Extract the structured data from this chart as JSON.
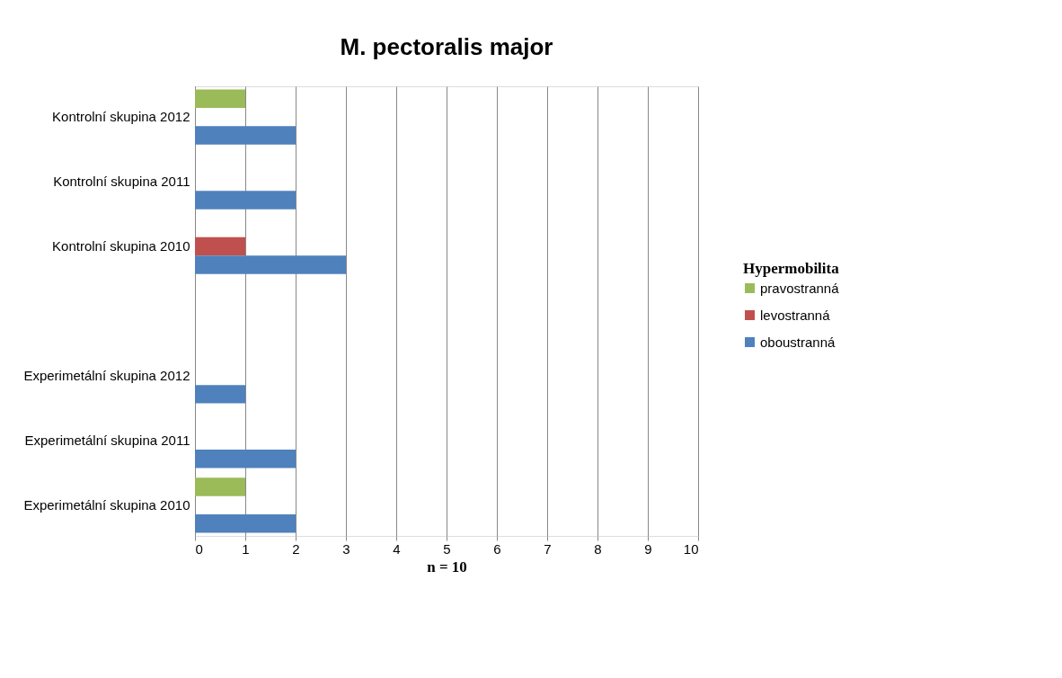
{
  "chart_data": {
    "type": "bar",
    "orientation": "horizontal",
    "title": "M. pectoralis major",
    "xlabel": "n = 10",
    "legend_title": "Hypermobilita",
    "categories": [
      "Kontrolní skupina 2012",
      "Kontrolní skupina 2011",
      "Kontrolní skupina 2010",
      null,
      "Experimetální skupina 2012",
      "Experimetální skupina 2011",
      "Experimetální skupina 2010"
    ],
    "series": [
      {
        "name": "pravostranná",
        "color": "#9bbb59",
        "values": [
          1,
          0,
          0,
          null,
          0,
          0,
          1
        ]
      },
      {
        "name": "levostranná",
        "color": "#c0504d",
        "values": [
          0,
          0,
          1,
          null,
          0,
          0,
          0
        ]
      },
      {
        "name": "oboustranná",
        "color": "#4f81bd",
        "values": [
          2,
          2,
          3,
          null,
          1,
          2,
          2
        ]
      }
    ],
    "xlim": [
      0,
      10
    ],
    "xticks": [
      0,
      1,
      2,
      3,
      4,
      5,
      6,
      7,
      8,
      9,
      10
    ],
    "grid": "x",
    "legend": "right"
  }
}
